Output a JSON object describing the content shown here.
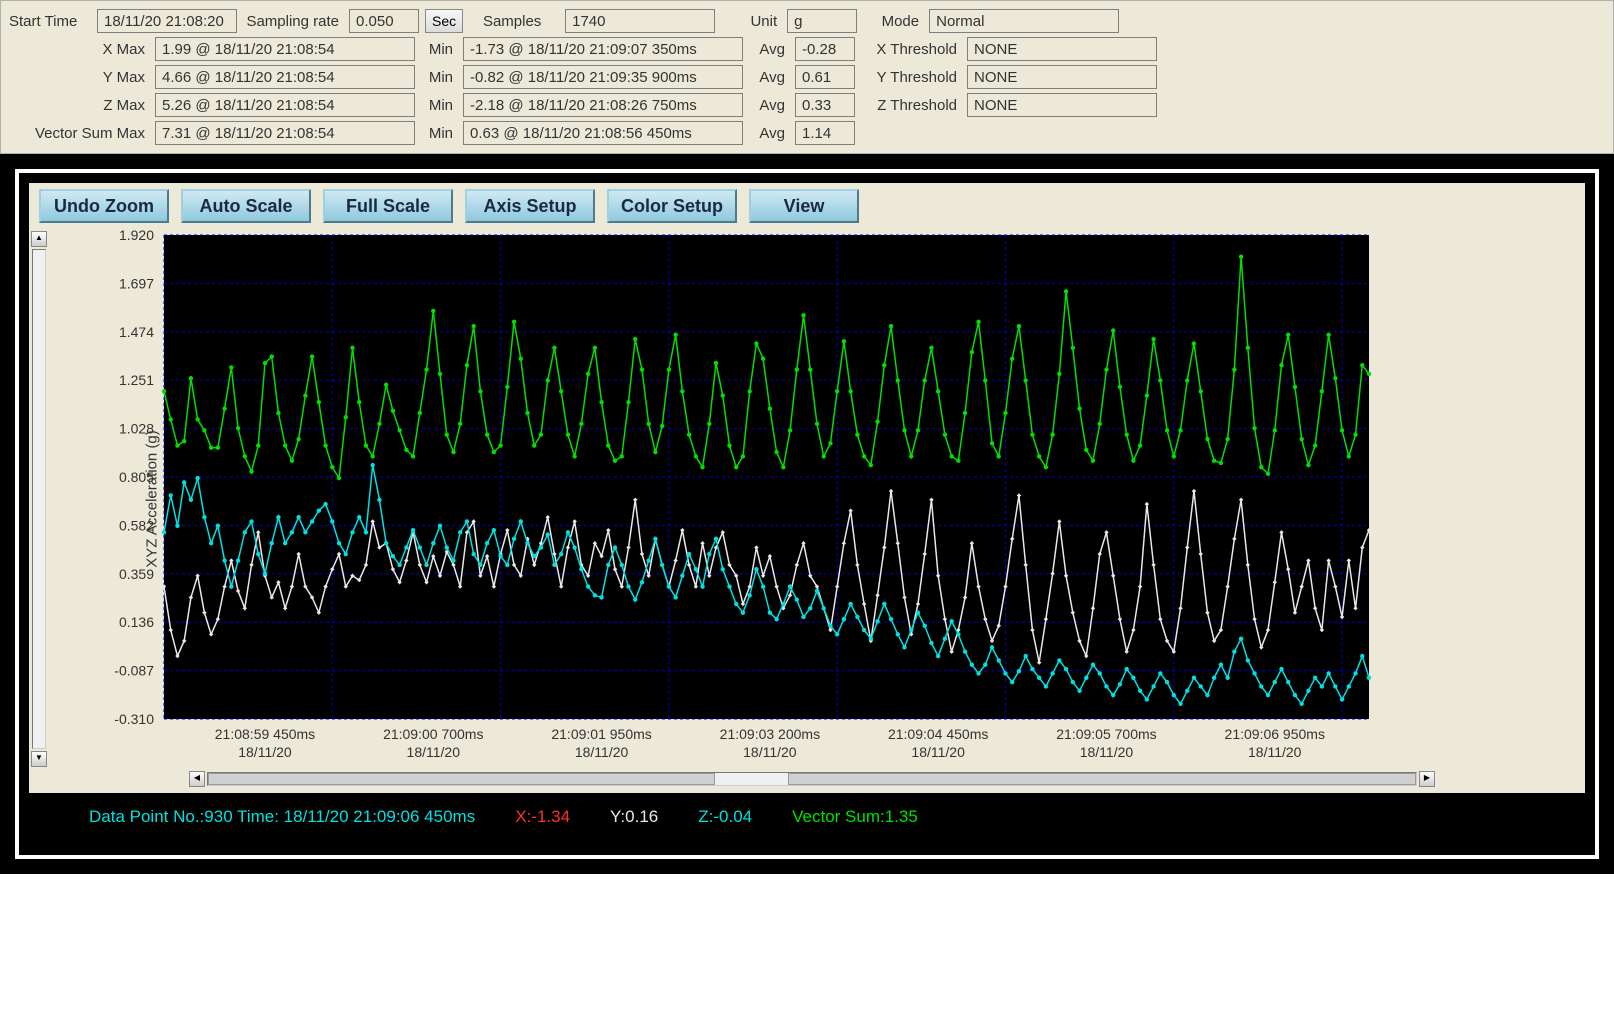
{
  "info": {
    "row0": {
      "start_time_label": "Start Time",
      "start_time": "18/11/20 21:08:20",
      "sampling_rate_label": "Sampling rate",
      "sampling_rate": "0.050",
      "sec_btn": "Sec",
      "samples_label": "Samples",
      "samples": "1740",
      "unit_label": "Unit",
      "unit": "g",
      "mode_label": "Mode",
      "mode": "Normal"
    },
    "axes": [
      {
        "name": "X  Max",
        "max": "1.99 @ 18/11/20 21:08:54",
        "min_label": "Min",
        "min": "-1.73 @ 18/11/20 21:09:07 350ms",
        "avg_label": "Avg",
        "avg": "-0.28",
        "thr_label": "X Threshold",
        "thr": "NONE"
      },
      {
        "name": "Y  Max",
        "max": "4.66 @ 18/11/20 21:08:54",
        "min_label": "Min",
        "min": "-0.82 @ 18/11/20 21:09:35 900ms",
        "avg_label": "Avg",
        "avg": "0.61",
        "thr_label": "Y Threshold",
        "thr": "NONE"
      },
      {
        "name": "Z  Max",
        "max": "5.26 @ 18/11/20 21:08:54",
        "min_label": "Min",
        "min": "-2.18 @ 18/11/20 21:08:26 750ms",
        "avg_label": "Avg",
        "avg": "0.33",
        "thr_label": "Z Threshold",
        "thr": "NONE"
      },
      {
        "name": "Vector Sum Max",
        "max": "7.31 @ 18/11/20 21:08:54",
        "min_label": "Min",
        "min": "0.63 @ 18/11/20 21:08:56 450ms",
        "avg_label": "Avg",
        "avg": "1.14",
        "thr_label": "",
        "thr": ""
      }
    ]
  },
  "toolbar": {
    "undo_zoom": "Undo Zoom",
    "auto_scale": "Auto Scale",
    "full_scale": "Full Scale",
    "axis_setup": "Axis Setup",
    "color_setup": "Color Setup",
    "view": "View"
  },
  "chart": {
    "type": "line",
    "plot_bg": "#000000",
    "panel_bg": "#ece9d8",
    "grid_color": "#0000cc",
    "grid_dash": "3,3",
    "axis_text_color": "#333333",
    "tick_fontsize": 14,
    "y_axis_label": "XYZ  Acceleration (g)",
    "ylim": [
      -0.31,
      1.92
    ],
    "yticks": [
      -0.31,
      -0.087,
      0.136,
      0.359,
      0.582,
      0.805,
      1.028,
      1.251,
      1.474,
      1.697,
      1.92
    ],
    "xticks": [
      {
        "t": "21:08:59 450ms",
        "d": "18/11/20"
      },
      {
        "t": "21:09:00 700ms",
        "d": "18/11/20"
      },
      {
        "t": "21:09:01 950ms",
        "d": "18/11/20"
      },
      {
        "t": "21:09:03 200ms",
        "d": "18/11/20"
      },
      {
        "t": "21:09:04 450ms",
        "d": "18/11/20"
      },
      {
        "t": "21:09:05 700ms",
        "d": "18/11/20"
      },
      {
        "t": "21:09:06 950ms",
        "d": "18/11/20"
      }
    ],
    "n_points": 180,
    "line_width": 1.5,
    "marker_radius": 2.2,
    "x_major_every": 25,
    "series": [
      {
        "name": "vectorsum",
        "color": "#00e000",
        "marker": "circle",
        "values": [
          1.2,
          1.07,
          0.95,
          0.97,
          1.26,
          1.07,
          1.02,
          0.94,
          0.94,
          1.12,
          1.31,
          1.03,
          0.9,
          0.83,
          0.95,
          1.33,
          1.36,
          1.1,
          0.95,
          0.88,
          0.98,
          1.18,
          1.36,
          1.15,
          0.95,
          0.85,
          0.8,
          1.08,
          1.4,
          1.15,
          0.95,
          0.9,
          1.05,
          1.23,
          1.11,
          1.02,
          0.93,
          0.9,
          1.1,
          1.3,
          1.57,
          1.28,
          1.0,
          0.92,
          1.05,
          1.32,
          1.5,
          1.2,
          1.0,
          0.92,
          0.95,
          1.22,
          1.52,
          1.35,
          1.1,
          0.95,
          1.0,
          1.25,
          1.4,
          1.2,
          1.0,
          0.9,
          1.05,
          1.28,
          1.4,
          1.15,
          0.95,
          0.88,
          0.9,
          1.15,
          1.44,
          1.3,
          1.05,
          0.92,
          1.04,
          1.3,
          1.46,
          1.2,
          1.0,
          0.9,
          0.85,
          1.05,
          1.33,
          1.18,
          0.95,
          0.85,
          0.9,
          1.2,
          1.42,
          1.35,
          1.12,
          0.92,
          0.85,
          1.02,
          1.3,
          1.55,
          1.3,
          1.05,
          0.9,
          0.96,
          1.2,
          1.43,
          1.2,
          1.0,
          0.9,
          0.86,
          1.06,
          1.32,
          1.5,
          1.25,
          1.02,
          0.9,
          1.02,
          1.25,
          1.4,
          1.2,
          1.0,
          0.9,
          0.88,
          1.1,
          1.38,
          1.52,
          1.25,
          0.96,
          0.9,
          1.1,
          1.35,
          1.5,
          1.25,
          1.0,
          0.9,
          0.85,
          1.0,
          1.28,
          1.66,
          1.4,
          1.12,
          0.93,
          0.88,
          1.05,
          1.3,
          1.48,
          1.22,
          1.0,
          0.88,
          0.95,
          1.18,
          1.44,
          1.25,
          1.02,
          0.9,
          1.02,
          1.25,
          1.42,
          1.2,
          0.98,
          0.88,
          0.87,
          0.98,
          1.3,
          1.82,
          1.4,
          1.03,
          0.85,
          0.82,
          1.02,
          1.32,
          1.46,
          1.22,
          0.98,
          0.86,
          0.95,
          1.2,
          1.46,
          1.26,
          1.02,
          0.9,
          1.0,
          1.32,
          1.28
        ]
      },
      {
        "name": "y",
        "color": "#e8e8e8",
        "marker": "diamond",
        "values": [
          0.3,
          0.1,
          -0.02,
          0.05,
          0.25,
          0.35,
          0.18,
          0.08,
          0.15,
          0.3,
          0.42,
          0.28,
          0.2,
          0.4,
          0.55,
          0.35,
          0.25,
          0.32,
          0.2,
          0.3,
          0.45,
          0.3,
          0.25,
          0.18,
          0.3,
          0.38,
          0.45,
          0.3,
          0.35,
          0.33,
          0.4,
          0.6,
          0.48,
          0.5,
          0.38,
          0.32,
          0.42,
          0.55,
          0.4,
          0.32,
          0.44,
          0.35,
          0.46,
          0.4,
          0.3,
          0.55,
          0.6,
          0.35,
          0.44,
          0.3,
          0.45,
          0.56,
          0.4,
          0.35,
          0.52,
          0.4,
          0.5,
          0.62,
          0.45,
          0.3,
          0.48,
          0.6,
          0.4,
          0.35,
          0.5,
          0.44,
          0.56,
          0.38,
          0.3,
          0.48,
          0.7,
          0.45,
          0.35,
          0.52,
          0.4,
          0.3,
          0.42,
          0.56,
          0.4,
          0.3,
          0.5,
          0.35,
          0.48,
          0.55,
          0.4,
          0.35,
          0.22,
          0.3,
          0.48,
          0.35,
          0.44,
          0.3,
          0.2,
          0.26,
          0.4,
          0.5,
          0.35,
          0.3,
          0.2,
          0.1,
          0.3,
          0.5,
          0.65,
          0.4,
          0.22,
          0.05,
          0.26,
          0.48,
          0.74,
          0.5,
          0.25,
          0.08,
          0.22,
          0.45,
          0.7,
          0.35,
          0.15,
          0.0,
          0.1,
          0.25,
          0.5,
          0.3,
          0.15,
          0.05,
          0.12,
          0.3,
          0.52,
          0.72,
          0.4,
          0.1,
          -0.05,
          0.15,
          0.36,
          0.6,
          0.35,
          0.18,
          0.05,
          -0.02,
          0.2,
          0.45,
          0.55,
          0.35,
          0.15,
          0.0,
          0.1,
          0.3,
          0.68,
          0.4,
          0.15,
          0.05,
          0.0,
          0.2,
          0.48,
          0.74,
          0.45,
          0.18,
          0.05,
          0.1,
          0.3,
          0.52,
          0.7,
          0.4,
          0.15,
          0.02,
          0.1,
          0.32,
          0.55,
          0.38,
          0.18,
          0.3,
          0.42,
          0.2,
          0.1,
          0.42,
          0.3,
          0.16,
          0.42,
          0.2,
          0.48,
          0.56
        ]
      },
      {
        "name": "z",
        "color": "#00e0e0",
        "marker": "circle",
        "values": [
          0.55,
          0.72,
          0.58,
          0.78,
          0.7,
          0.8,
          0.62,
          0.5,
          0.58,
          0.42,
          0.3,
          0.42,
          0.55,
          0.6,
          0.45,
          0.36,
          0.5,
          0.62,
          0.5,
          0.55,
          0.62,
          0.55,
          0.6,
          0.65,
          0.68,
          0.6,
          0.5,
          0.45,
          0.55,
          0.62,
          0.55,
          0.86,
          0.7,
          0.5,
          0.44,
          0.4,
          0.48,
          0.56,
          0.48,
          0.4,
          0.5,
          0.58,
          0.48,
          0.42,
          0.55,
          0.6,
          0.45,
          0.4,
          0.5,
          0.56,
          0.44,
          0.4,
          0.52,
          0.6,
          0.5,
          0.44,
          0.48,
          0.54,
          0.4,
          0.45,
          0.55,
          0.48,
          0.38,
          0.3,
          0.26,
          0.25,
          0.4,
          0.48,
          0.4,
          0.3,
          0.24,
          0.32,
          0.42,
          0.52,
          0.4,
          0.3,
          0.25,
          0.35,
          0.45,
          0.38,
          0.3,
          0.45,
          0.52,
          0.38,
          0.3,
          0.22,
          0.18,
          0.26,
          0.38,
          0.3,
          0.18,
          0.15,
          0.22,
          0.3,
          0.24,
          0.16,
          0.2,
          0.28,
          0.2,
          0.12,
          0.08,
          0.15,
          0.22,
          0.16,
          0.1,
          0.06,
          0.14,
          0.22,
          0.15,
          0.08,
          0.02,
          0.1,
          0.18,
          0.12,
          0.04,
          -0.02,
          0.06,
          0.14,
          0.08,
          0.0,
          -0.06,
          -0.1,
          -0.06,
          0.02,
          -0.04,
          -0.1,
          -0.14,
          -0.09,
          -0.02,
          -0.08,
          -0.12,
          -0.16,
          -0.1,
          -0.04,
          -0.08,
          -0.14,
          -0.18,
          -0.12,
          -0.06,
          -0.1,
          -0.16,
          -0.2,
          -0.15,
          -0.08,
          -0.12,
          -0.18,
          -0.22,
          -0.16,
          -0.1,
          -0.14,
          -0.2,
          -0.24,
          -0.18,
          -0.12,
          -0.16,
          -0.2,
          -0.12,
          -0.06,
          -0.12,
          0.0,
          0.06,
          -0.04,
          -0.1,
          -0.16,
          -0.2,
          -0.14,
          -0.08,
          -0.14,
          -0.2,
          -0.24,
          -0.18,
          -0.12,
          -0.16,
          -0.1,
          -0.16,
          -0.22,
          -0.16,
          -0.1,
          -0.02,
          -0.12
        ]
      }
    ]
  },
  "status": {
    "datapoint_color": "#00e0e0",
    "datapoint": "Data Point No.:930   Time: 18/11/20 21:09:06 450ms",
    "x_color": "#ff3030",
    "x": "X:-1.34",
    "y_color": "#e8e8e8",
    "y": "Y:0.16",
    "z_color": "#00e0e0",
    "z": "Z:-0.04",
    "vs_color": "#00e000",
    "vs": "Vector Sum:1.35"
  }
}
